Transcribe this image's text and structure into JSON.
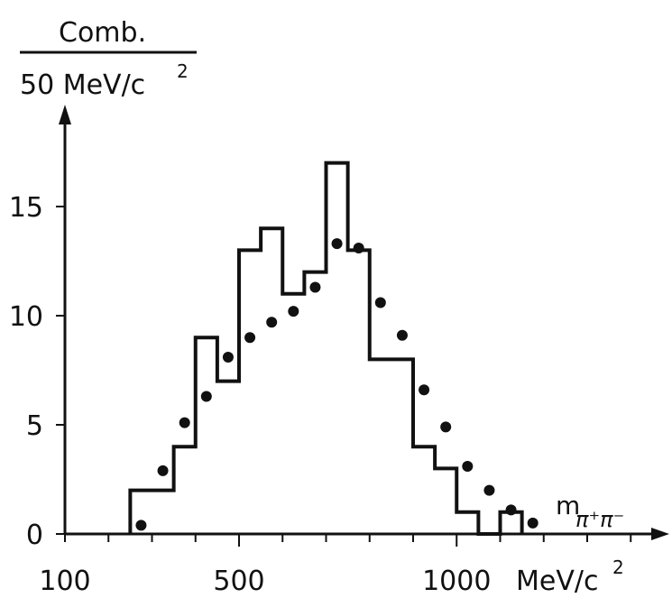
{
  "chart_data": {
    "type": "histogram",
    "ylabel": {
      "numerator": "Comb.",
      "denominator": "50 MeV/c",
      "denominator_exp": "2"
    },
    "xlabel": {
      "symbol": "m",
      "subscript": "π⁺π⁻"
    },
    "x_tick_labels": [
      {
        "value": 100,
        "text": "100"
      },
      {
        "value": 500,
        "text": "500"
      },
      {
        "value": 1000,
        "text": "1000"
      }
    ],
    "x_unit": {
      "text": "MeV/c",
      "exp": "2"
    },
    "y_tick_labels": [
      {
        "value": 0,
        "text": "0"
      },
      {
        "value": 5,
        "text": "5"
      },
      {
        "value": 10,
        "text": "10"
      },
      {
        "value": 15,
        "text": "15"
      }
    ],
    "xlim": [
      100,
      1550
    ],
    "ylim": [
      0,
      19
    ],
    "bin_width": 50,
    "histogram": {
      "bin_edges": [
        250,
        300,
        350,
        400,
        450,
        500,
        550,
        600,
        650,
        700,
        750,
        800,
        850,
        900,
        950,
        1000,
        1050,
        1100,
        1150
      ],
      "counts": [
        2,
        2,
        4,
        9,
        7,
        13,
        14,
        11,
        12,
        17,
        13,
        8,
        8,
        4,
        3,
        1,
        0,
        1
      ]
    },
    "points": {
      "x": [
        275,
        325,
        375,
        425,
        475,
        525,
        575,
        625,
        675,
        725,
        775,
        825,
        875,
        925,
        975,
        1025,
        1075,
        1125,
        1175
      ],
      "y": [
        0.4,
        2.9,
        5.1,
        6.3,
        8.1,
        9.0,
        9.7,
        10.2,
        11.3,
        13.3,
        13.1,
        10.6,
        9.1,
        6.6,
        4.9,
        3.1,
        2.0,
        1.1,
        0.5
      ]
    }
  }
}
